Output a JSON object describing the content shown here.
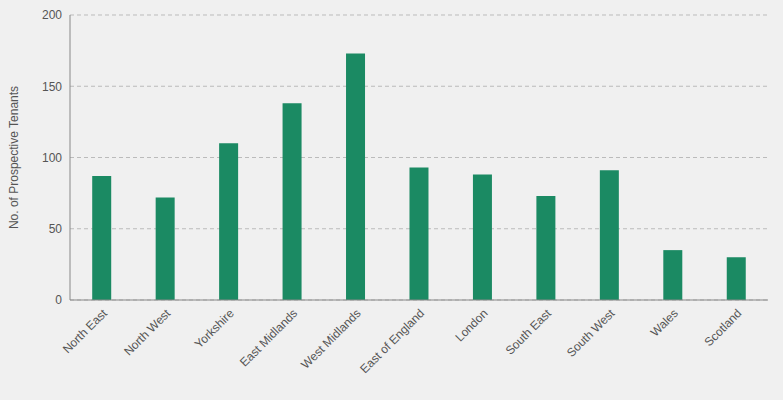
{
  "chart_data": {
    "type": "bar",
    "y_label": "No. of Prospective Tenants",
    "categories": [
      "North East",
      "North West",
      "Yorkshire",
      "East Midlands",
      "West Midlands",
      "East of England",
      "London",
      "South East",
      "South West",
      "Wales",
      "Scotland"
    ],
    "values": [
      87,
      72,
      110,
      138,
      173,
      93,
      88,
      73,
      91,
      35,
      30
    ],
    "color": "#1b8a63",
    "ylim": [
      0,
      200
    ],
    "yticks": [
      0,
      50,
      100,
      150,
      200
    ],
    "grid": true
  }
}
